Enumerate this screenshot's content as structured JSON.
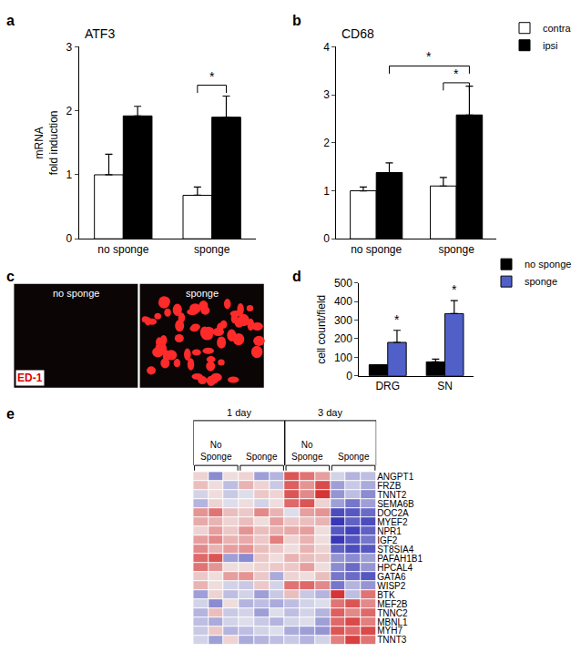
{
  "chart_data": [
    {
      "type": "bar",
      "panel": "a",
      "title": "ATF3",
      "y_label": "mRNA\nfold induction",
      "categories": [
        "no sponge",
        "sponge"
      ],
      "series": [
        {
          "name": "contra",
          "color": "#ffffff",
          "values": [
            1.0,
            0.68
          ],
          "errors": [
            0.32,
            0.13
          ]
        },
        {
          "name": "ipsi",
          "color": "#000000",
          "values": [
            1.92,
            1.9
          ],
          "errors": [
            0.15,
            0.33
          ]
        }
      ],
      "ylim": [
        0,
        3
      ],
      "yticks": [
        0,
        1,
        2,
        3
      ],
      "grid": false,
      "significance": [
        {
          "bars": [
            [
              1,
              0
            ],
            [
              1,
              1
            ]
          ],
          "y": 2.4,
          "text": "*"
        }
      ]
    },
    {
      "type": "bar",
      "panel": "b",
      "title": "CD68",
      "categories": [
        "no sponge",
        "sponge"
      ],
      "series": [
        {
          "name": "contra",
          "color": "#ffffff",
          "values": [
            1.0,
            1.1
          ],
          "errors": [
            0.08,
            0.18
          ]
        },
        {
          "name": "ipsi",
          "color": "#000000",
          "values": [
            1.38,
            2.58
          ],
          "errors": [
            0.2,
            0.6
          ]
        }
      ],
      "ylim": [
        0,
        4
      ],
      "yticks": [
        0,
        1,
        2,
        3,
        4
      ],
      "grid": false,
      "legend": "top right",
      "significance": [
        {
          "bars": [
            [
              0,
              1
            ],
            [
              1,
              1
            ]
          ],
          "y": 3.6,
          "text": "*"
        },
        {
          "bars": [
            [
              1,
              0
            ],
            [
              1,
              1
            ]
          ],
          "y": 3.25,
          "text": "*"
        }
      ]
    },
    {
      "type": "image",
      "panel": "c",
      "labels": [
        "no sponge",
        "sponge"
      ],
      "stain": "ED-1"
    },
    {
      "type": "bar",
      "panel": "d",
      "y_label": "cell count/field",
      "categories": [
        "DRG",
        "SN"
      ],
      "series": [
        {
          "name": "no sponge",
          "color": "#000000",
          "values": [
            60,
            75
          ],
          "errors": [
            0,
            15
          ]
        },
        {
          "name": "sponge",
          "color": "#5060c8",
          "values": [
            180,
            335
          ],
          "errors": [
            65,
            70
          ]
        }
      ],
      "ylim": [
        0,
        500
      ],
      "yticks": [
        0,
        100,
        200,
        300,
        400,
        500
      ],
      "grid": false,
      "legend": "top right",
      "significance": [
        {
          "bars": [
            [
              0,
              1
            ]
          ],
          "y": 255,
          "text": "*"
        },
        {
          "bars": [
            [
              1,
              1
            ]
          ],
          "y": 415,
          "text": "*"
        }
      ]
    },
    {
      "type": "heatmap",
      "panel": "e",
      "tick_labels": "y",
      "rows": [
        "ANGPT1",
        "FRZB",
        "TNNT2",
        "SEMA6B",
        "DOC2A",
        "MYEF2",
        "NPR1",
        "IGF2",
        "ST8SIA4",
        "PAFAH1B1",
        "HPCAL4",
        "GATA6",
        "WISP2",
        "BTK",
        "MEF2B",
        "TNNC2",
        "MBNL1",
        "MYH7",
        "TNNT3"
      ],
      "column_groups": [
        {
          "label": "1 day",
          "columns": [
            0,
            5
          ]
        },
        {
          "label": "3 day",
          "columns": [
            6,
            11
          ]
        }
      ],
      "column_subgroups": [
        {
          "label": "No\nSponge",
          "columns": [
            0,
            2
          ]
        },
        {
          "label": "Sponge",
          "columns": [
            3,
            5
          ]
        },
        {
          "label": "No\nSponge",
          "columns": [
            6,
            8
          ]
        },
        {
          "label": "Sponge",
          "columns": [
            9,
            11
          ]
        }
      ],
      "zlim": [
        -2,
        2
      ],
      "cells": [
        [
          0.3,
          -1.0,
          0.2,
          0.3,
          -0.8,
          -0.6,
          1.5,
          1.2,
          0.8,
          -0.3,
          -0.6,
          -0.5
        ],
        [
          0.5,
          0.2,
          -0.5,
          0.6,
          0.3,
          -0.4,
          1.4,
          0.9,
          1.6,
          -0.8,
          -0.4,
          -0.7
        ],
        [
          -0.3,
          0.2,
          -0.4,
          -0.2,
          0.4,
          0.3,
          1.5,
          1.0,
          1.8,
          -0.9,
          -0.5,
          -1.0
        ],
        [
          -0.6,
          0.3,
          -0.2,
          0.2,
          -0.3,
          0.2,
          1.3,
          1.5,
          0.3,
          -0.8,
          -1.2,
          -0.8
        ],
        [
          0.9,
          1.2,
          0.5,
          0.4,
          1.0,
          0.6,
          -0.2,
          0.8,
          0.9,
          -1.6,
          -1.5,
          -1.3
        ],
        [
          0.7,
          0.6,
          0.3,
          0.5,
          0.2,
          0.8,
          0.4,
          0.5,
          0.6,
          -1.8,
          -1.4,
          -1.6
        ],
        [
          0.3,
          0.8,
          0.4,
          0.9,
          0.5,
          0.6,
          0.7,
          0.8,
          0.2,
          -1.5,
          -1.7,
          -1.4
        ],
        [
          0.8,
          1.0,
          0.6,
          0.7,
          0.4,
          1.1,
          0.3,
          0.6,
          0.2,
          -1.8,
          -1.5,
          -1.2
        ],
        [
          1.0,
          0.6,
          0.8,
          0.9,
          0.5,
          0.4,
          0.2,
          0.6,
          0.3,
          -1.4,
          -1.6,
          -1.5
        ],
        [
          1.3,
          1.5,
          -0.8,
          -1.0,
          0.4,
          0.2,
          0.6,
          0.5,
          0.4,
          -0.9,
          -1.0,
          -0.8
        ],
        [
          1.2,
          0.9,
          0.2,
          0.2,
          0.3,
          0.4,
          0.4,
          0.8,
          0.2,
          -1.0,
          -1.3,
          -0.9
        ],
        [
          0.4,
          0.2,
          0.8,
          0.9,
          0.4,
          -0.7,
          0.3,
          0.2,
          0.5,
          -1.2,
          -1.3,
          -1.5
        ],
        [
          0.6,
          0.2,
          -0.3,
          -0.4,
          0.4,
          -0.3,
          1.2,
          1.3,
          1.0,
          -1.2,
          -0.6,
          -0.9
        ],
        [
          -0.8,
          0.3,
          -0.5,
          -0.3,
          -0.8,
          -0.4,
          0.5,
          -0.4,
          -0.6,
          1.8,
          -0.5,
          1.2
        ],
        [
          -0.3,
          -1.0,
          0.2,
          -0.6,
          -0.5,
          -0.7,
          -0.5,
          -0.3,
          -0.2,
          1.2,
          1.5,
          1.0
        ],
        [
          -0.6,
          0.5,
          -0.4,
          -0.3,
          -0.8,
          -0.2,
          -0.5,
          -0.3,
          -0.6,
          1.4,
          1.0,
          1.3
        ],
        [
          -0.5,
          -0.7,
          -0.3,
          -0.2,
          -0.4,
          -0.6,
          -0.3,
          -0.2,
          -0.8,
          1.3,
          1.6,
          1.1
        ],
        [
          -0.4,
          0.4,
          -0.6,
          -0.5,
          -0.3,
          -0.2,
          -0.7,
          -0.8,
          -0.9,
          1.5,
          1.3,
          1.6
        ],
        [
          -0.3,
          -0.8,
          0.3,
          -0.7,
          -0.6,
          -0.5,
          -0.4,
          -0.6,
          -0.3,
          1.1,
          1.7,
          1.2
        ]
      ]
    }
  ]
}
